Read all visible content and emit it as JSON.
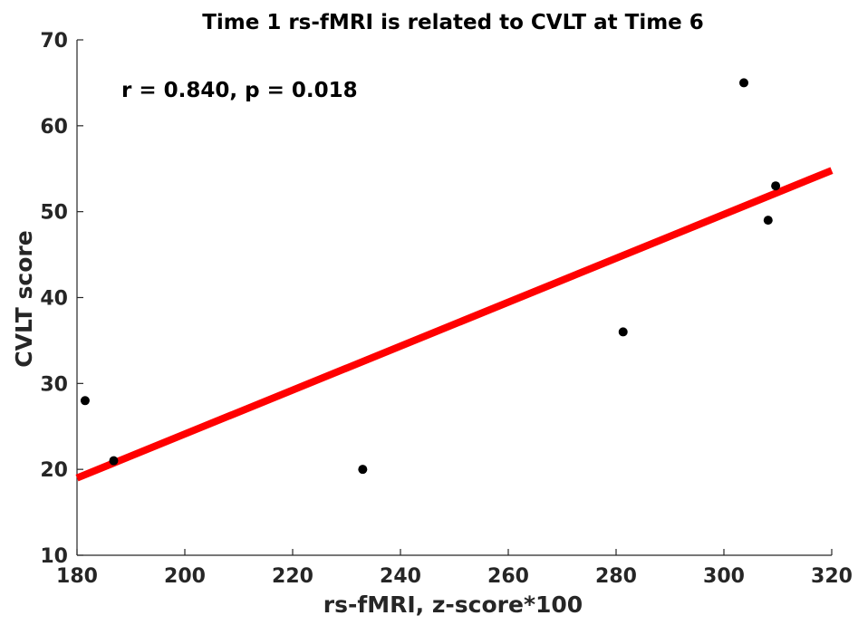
{
  "chart_data": {
    "type": "scatter",
    "title": "Time 1 rs-fMRI is related to CVLT at Time 6",
    "xlabel": "rs-fMRI, z-score*100",
    "ylabel": "CVLT score",
    "xlim": [
      180,
      320
    ],
    "ylim": [
      10,
      70
    ],
    "xticks": [
      180,
      200,
      220,
      240,
      260,
      280,
      300,
      320
    ],
    "yticks": [
      10,
      20,
      30,
      40,
      50,
      60,
      70
    ],
    "annotation": "r = 0.840, p = 0.018",
    "series": [
      {
        "name": "data",
        "x": [
          181.5,
          186.8,
          233.0,
          281.3,
          303.7,
          308.2,
          309.6
        ],
        "y": [
          28,
          21,
          20,
          36,
          65,
          49,
          53
        ],
        "color": "#000000"
      }
    ],
    "fit_line": {
      "x": [
        180,
        320
      ],
      "y": [
        19.0,
        54.8
      ],
      "color": "#ff0000"
    },
    "grid": false
  }
}
